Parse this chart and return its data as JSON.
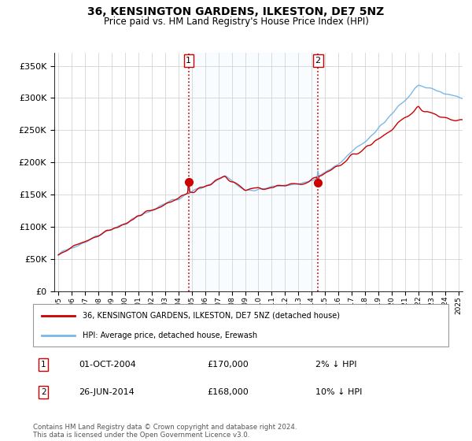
{
  "title": "36, KENSINGTON GARDENS, ILKESTON, DE7 5NZ",
  "subtitle": "Price paid vs. HM Land Registry's House Price Index (HPI)",
  "legend_line1": "36, KENSINGTON GARDENS, ILKESTON, DE7 5NZ (detached house)",
  "legend_line2": "HPI: Average price, detached house, Erewash",
  "annotation1_date": "01-OCT-2004",
  "annotation1_price": "£170,000",
  "annotation1_hpi": "2% ↓ HPI",
  "annotation2_date": "26-JUN-2014",
  "annotation2_price": "£168,000",
  "annotation2_hpi": "10% ↓ HPI",
  "footnote": "Contains HM Land Registry data © Crown copyright and database right 2024.\nThis data is licensed under the Open Government Licence v3.0.",
  "hpi_color": "#7ab8e8",
  "hpi_fill_color": "#ddeeff",
  "price_color": "#cc0000",
  "marker_color": "#cc0000",
  "annotation_box_color": "#cc0000",
  "ylim": [
    0,
    370000
  ],
  "yticks": [
    0,
    50000,
    100000,
    150000,
    200000,
    250000,
    300000,
    350000
  ],
  "ytick_labels": [
    "£0",
    "£50K",
    "£100K",
    "£150K",
    "£200K",
    "£250K",
    "£300K",
    "£350K"
  ],
  "xmin": 1994.7,
  "xmax": 2025.3,
  "t1": 2004.75,
  "t2": 2014.5,
  "price1": 170000,
  "price2": 168000,
  "hpi1": 173500,
  "hpi2": 186700,
  "grid_color": "#cccccc",
  "seed": 17
}
